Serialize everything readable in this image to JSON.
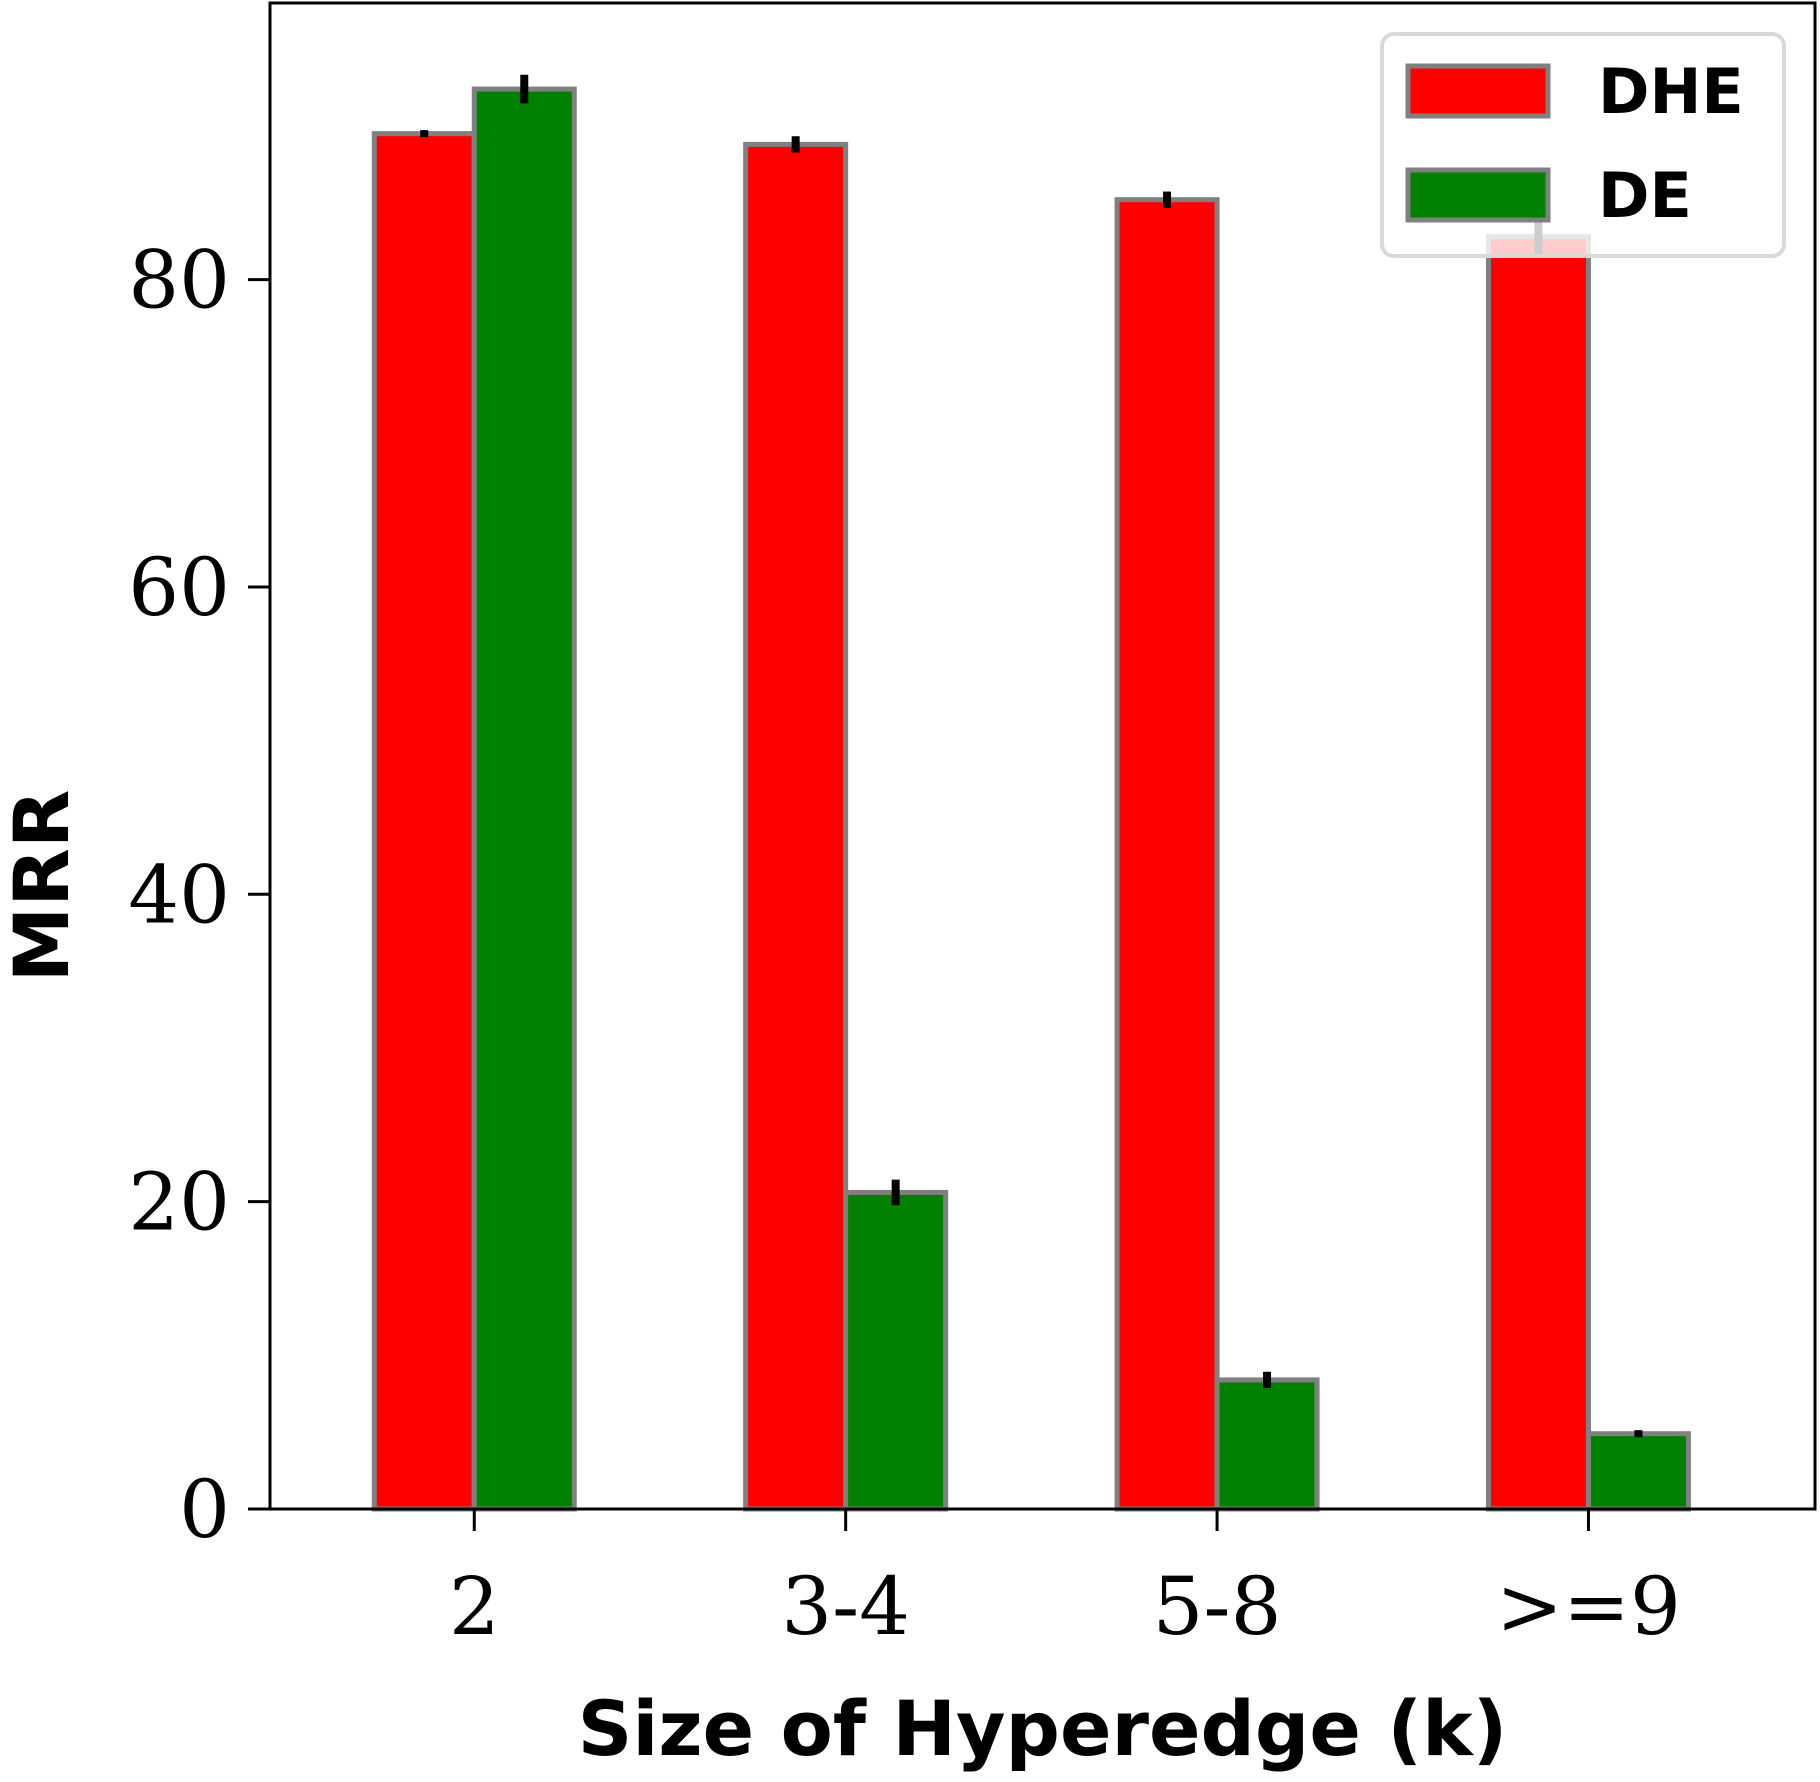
{
  "chart_data": {
    "type": "bar",
    "title": "",
    "xlabel": "Size of Hyperedge (k)",
    "ylabel": "MRR",
    "categories": [
      "2",
      "3-4",
      "5-8",
      ">=9"
    ],
    "series": [
      {
        "name": "DHE",
        "values": [
          89.5,
          88.8,
          85.2,
          82.8
        ],
        "errors": [
          0.1,
          0.4,
          0.4,
          1.0
        ],
        "color": "#ff0000"
      },
      {
        "name": "DE",
        "values": [
          92.4,
          20.6,
          8.4,
          4.9
        ],
        "errors": [
          0.8,
          0.7,
          0.4,
          0.1
        ],
        "color": "#008000"
      }
    ],
    "ylim": [
      0,
      98
    ],
    "yticks": [
      0,
      20,
      40,
      60,
      80
    ],
    "grid": false,
    "legend": "top-right",
    "bar_edge_color": "#808080"
  }
}
